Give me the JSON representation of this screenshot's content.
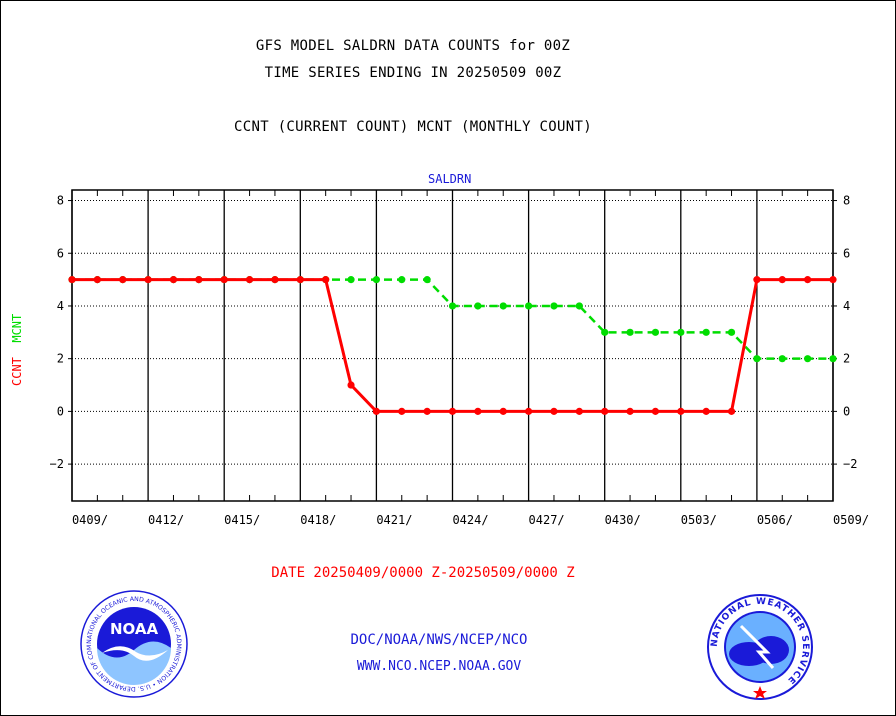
{
  "header": {
    "title_line1": "GFS MODEL SALDRN DATA COUNTS for 00Z",
    "title_line2": "TIME SERIES ENDING IN 20250509 00Z",
    "subtitle": "CCNT (CURRENT COUNT) MCNT (MONTHLY COUNT)",
    "panel_label": "SALDRN"
  },
  "y_axis_label": {
    "ccnt": "CCNT",
    "mcnt": "MCNT"
  },
  "date_range_label": "DATE 20250409/0000 Z-20250509/0000 Z",
  "footer": {
    "line1": "DOC/NOAA/NWS/NCEP/NCO",
    "line2": "WWW.NCO.NCEP.NOAA.GOV"
  },
  "logos": {
    "noaa_text": "NOAA",
    "noaa_ring": "NATIONAL OCEANIC AND ATMOSPHERIC ADMINISTRATION • U.S. DEPARTMENT OF COMMERCE •",
    "nws_ring": "NATIONAL WEATHER SERVICE"
  },
  "chart_data": {
    "type": "line",
    "panel": "SALDRN",
    "x_tick_labels": [
      "0409/",
      "0412/",
      "0415/",
      "0418/",
      "0421/",
      "0424/",
      "0427/",
      "0430/",
      "0503/",
      "0506/",
      "0509/"
    ],
    "x_dates": [
      "0409",
      "0410",
      "0411",
      "0412",
      "0413",
      "0414",
      "0415",
      "0416",
      "0417",
      "0418",
      "0419",
      "0420",
      "0421",
      "0422",
      "0423",
      "0424",
      "0425",
      "0426",
      "0427",
      "0428",
      "0429",
      "0430",
      "0501",
      "0502",
      "0503",
      "0504",
      "0505",
      "0506",
      "0507",
      "0508",
      "0509"
    ],
    "y_ticks": [
      -2,
      0,
      2,
      4,
      6,
      8
    ],
    "ylim": [
      -3.4,
      8.4
    ],
    "grid": true,
    "series": [
      {
        "name": "CCNT",
        "color": "#ff0000",
        "style": "solid",
        "values": [
          5,
          5,
          5,
          5,
          5,
          5,
          5,
          5,
          5,
          5,
          5,
          1,
          0,
          0,
          0,
          0,
          0,
          0,
          0,
          0,
          0,
          0,
          0,
          0,
          0,
          0,
          0,
          5,
          5,
          5,
          5
        ]
      },
      {
        "name": "MCNT",
        "color": "#00dd00",
        "style": "dashed",
        "values": [
          5,
          5,
          5,
          5,
          5,
          5,
          5,
          5,
          5,
          5,
          5,
          5,
          5,
          5,
          5,
          4,
          4,
          4,
          4,
          4,
          4,
          3,
          3,
          3,
          3,
          3,
          3,
          2,
          2,
          2,
          2
        ]
      }
    ]
  }
}
